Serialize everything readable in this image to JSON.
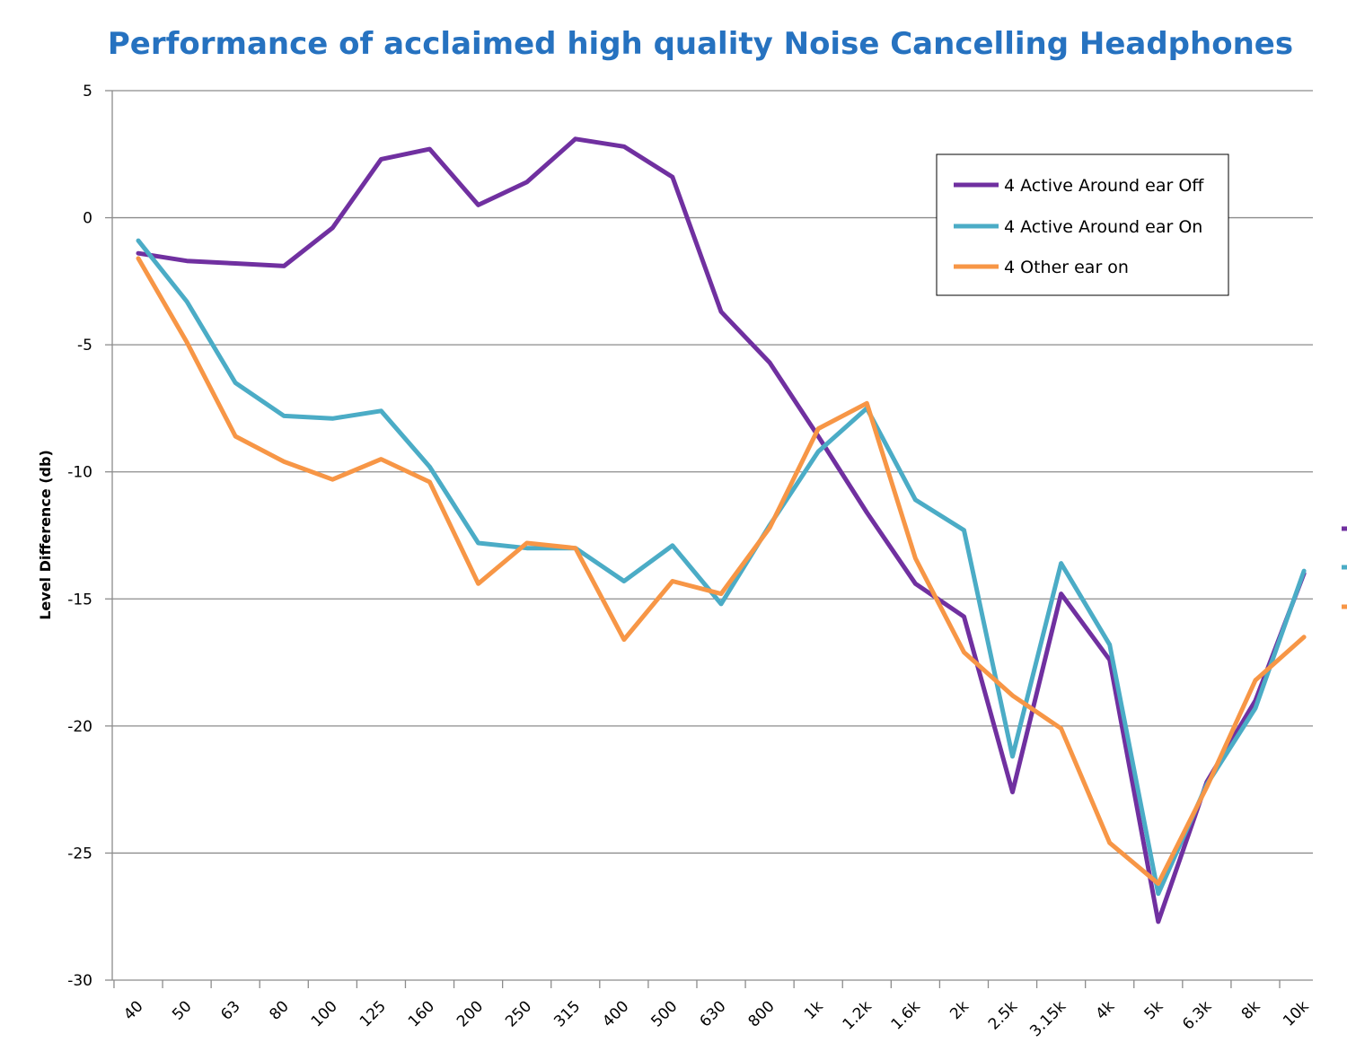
{
  "chart_data": {
    "type": "line",
    "title": "Performance of acclaimed high quality Noise Cancelling Headphones",
    "xlabel": "",
    "ylabel": "Level Difference (db)",
    "ylim": [
      -30,
      5
    ],
    "yticks": [
      "5",
      "0",
      "-5",
      "-10",
      "-15",
      "-20",
      "-25",
      "-30"
    ],
    "grid": "horizontal",
    "legend_position": "top-right",
    "categories": [
      "40",
      "50",
      "63",
      "80",
      "100",
      "125",
      "160",
      "200",
      "250",
      "315",
      "400",
      "500",
      "630",
      "800",
      "1k",
      "1.2k",
      "1.6k",
      "2k",
      "2.5k",
      "3.15k",
      "4k",
      "5k",
      "6.3k",
      "8k",
      "10k"
    ],
    "series": [
      {
        "name": "4 Active Around ear Off",
        "color": "#7030a0",
        "values": [
          -1.4,
          -1.7,
          -1.8,
          -1.9,
          -0.4,
          2.3,
          2.7,
          0.5,
          1.4,
          3.1,
          2.8,
          1.6,
          -3.7,
          -5.7,
          -8.6,
          -11.6,
          -14.4,
          -15.7,
          -22.6,
          -14.8,
          -17.4,
          -27.7,
          -22.2,
          -19.0,
          -14.0
        ]
      },
      {
        "name": "4 Active Around ear On",
        "color": "#4bacc6",
        "values": [
          -0.9,
          -3.3,
          -6.5,
          -7.8,
          -7.9,
          -7.6,
          -9.8,
          -12.8,
          -13.0,
          -13.0,
          -14.3,
          -12.9,
          -15.2,
          -12.1,
          -9.2,
          -7.5,
          -11.1,
          -12.3,
          -21.2,
          -13.6,
          -16.8,
          -26.6,
          -22.3,
          -19.3,
          -13.9
        ]
      },
      {
        "name": "4  Other ear on",
        "color": "#f79646",
        "values": [
          -1.6,
          -4.9,
          -8.6,
          -9.6,
          -10.3,
          -9.5,
          -10.4,
          -14.4,
          -12.8,
          -13.0,
          -16.6,
          -14.3,
          -14.8,
          -12.2,
          -8.3,
          -7.3,
          -13.4,
          -17.1,
          -18.8,
          -20.1,
          -24.6,
          -26.2,
          -22.4,
          -18.2,
          -16.5
        ]
      }
    ]
  }
}
